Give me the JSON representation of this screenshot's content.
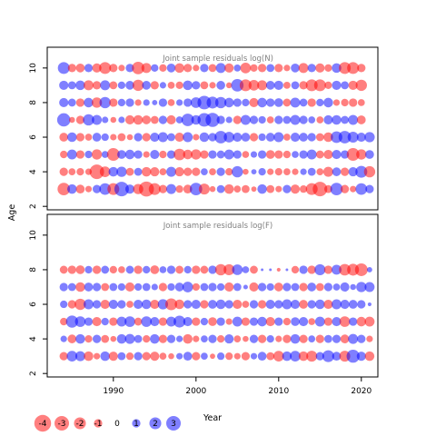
{
  "chart_data": [
    {
      "type": "scatter",
      "title": "Joint sample residuals log(N)",
      "ylabel": "Age",
      "xlim": [
        1982,
        2022
      ],
      "ylim": [
        1.8,
        11.2
      ],
      "yticks": [
        "2",
        "4",
        "6",
        "8",
        "10"
      ],
      "ages": [
        3,
        4,
        5,
        6,
        7,
        8,
        9,
        10
      ],
      "age_year_range": {
        "3": [
          1984,
          2021
        ],
        "4": [
          1984,
          2021
        ],
        "5": [
          1984,
          2021
        ],
        "6": [
          1984,
          2021
        ],
        "7": [
          1984,
          2020
        ],
        "8": [
          1984,
          2020
        ],
        "9": [
          1984,
          2020
        ],
        "10": [
          1984,
          2020
        ]
      },
      "residuals": {
        "3": [
          -2.2,
          1.3,
          -1.1,
          -0.6,
          1.0,
          1.9,
          -2.0,
          3.0,
          1.2,
          -1.5,
          -3.2,
          -2.0,
          -1.0,
          1.4,
          -0.8,
          -1.1,
          2.2,
          -1.7,
          -0.5,
          0.9,
          -1.3,
          -0.7,
          -0.9,
          -0.4,
          1.3,
          -0.9,
          -0.6,
          1.0,
          -1.2,
          -0.8,
          -2.0,
          -3.0,
          -0.9,
          2.2,
          -1.0,
          -0.6,
          1.9,
          1.0
        ],
        "4": [
          -1.0,
          -0.7,
          -0.8,
          -0.6,
          -3.0,
          -1.6,
          1.3,
          1.5,
          -0.9,
          0.9,
          -1.3,
          -1.2,
          -0.7,
          1.4,
          -1.2,
          -1.0,
          -1.0,
          0.7,
          -0.7,
          1.0,
          -0.8,
          1.8,
          -0.5,
          0.4,
          0.8,
          -0.6,
          -0.8,
          -0.7,
          -0.6,
          0.6,
          0.9,
          -0.7,
          -1.4,
          1.1,
          -1.0,
          1.2,
          2.0,
          -1.8
        ],
        "5": [
          -0.8,
          1.4,
          -1.0,
          0.8,
          -1.5,
          0.7,
          -2.3,
          1.1,
          1.3,
          1.0,
          -0.6,
          1.2,
          -0.8,
          1.0,
          -1.9,
          -1.3,
          -1.5,
          -1.0,
          1.0,
          0.9,
          1.4,
          1.0,
          -0.7,
          0.6,
          1.0,
          -1.1,
          -1.0,
          -0.8,
          0.7,
          1.0,
          1.4,
          -0.9,
          -1.2,
          1.2,
          1.0,
          -2.3,
          -1.5,
          1.1
        ],
        "6": [
          -1.1,
          1.3,
          -1.0,
          -0.7,
          1.1,
          0.8,
          -0.6,
          -0.9,
          -0.5,
          1.0,
          -1.0,
          1.2,
          1.4,
          0.9,
          -1.2,
          1.4,
          -0.6,
          1.3,
          1.0,
          2.2,
          1.6,
          1.2,
          1.1,
          -1.0,
          0.8,
          1.1,
          1.4,
          -0.7,
          1.2,
          1.1,
          1.0,
          -0.9,
          -1.3,
          1.9,
          2.2,
          1.7,
          1.2,
          1.5
        ],
        "7": [
          2.5,
          -0.5,
          -1.0,
          1.8,
          1.4,
          0.6,
          -0.5,
          0.6,
          -1.2,
          -1.3,
          -1.1,
          -0.9,
          1.0,
          -1.2,
          0.7,
          2.2,
          1.3,
          2.6,
          2.8,
          1.0,
          0.6,
          -1.0,
          1.4,
          1.0,
          0.8,
          -0.7,
          1.0,
          0.9,
          1.4,
          1.0,
          0.7,
          -0.7,
          1.2,
          1.3,
          0.9,
          1.4,
          -1.1
        ],
        "8": [
          1.2,
          0.9,
          -1.0,
          1.3,
          -1.5,
          1.8,
          -1.0,
          0.8,
          1.0,
          -0.6,
          0.6,
          0.4,
          1.0,
          -0.7,
          0.6,
          1.0,
          1.6,
          2.6,
          2.0,
          1.8,
          1.3,
          1.0,
          0.8,
          -1.2,
          1.3,
          1.0,
          1.1,
          -0.9,
          1.4,
          0.9,
          -1.0,
          0.8,
          1.3,
          -0.6,
          -0.8,
          -1.0,
          -0.7
        ],
        "9": [
          1.2,
          0.9,
          1.3,
          -1.4,
          -1.0,
          1.4,
          -0.9,
          0.8,
          1.1,
          -1.8,
          1.1,
          -1.0,
          0.6,
          -0.7,
          -0.8,
          1.3,
          1.0,
          -0.9,
          -0.6,
          1.1,
          -0.5,
          2.2,
          -2.0,
          -1.6,
          -1.4,
          1.1,
          1.2,
          -0.7,
          0.9,
          -1.0,
          -2.0,
          -2.0,
          -0.8,
          1.2,
          0.9,
          -1.2,
          -1.8
        ],
        "10": [
          2.0,
          -1.0,
          -1.1,
          1.0,
          -1.2,
          -2.0,
          -1.0,
          -0.6,
          1.0,
          -2.2,
          -1.4,
          0.8,
          -0.8,
          1.1,
          -1.3,
          -1.0,
          -0.6,
          1.0,
          -0.9,
          1.4,
          -1.2,
          0.7,
          -1.6,
          -0.8,
          -1.0,
          0.9,
          -1.0,
          -0.6,
          1.1,
          -1.4,
          1.0,
          -1.2,
          -0.8,
          1.3,
          -2.0,
          -2.0,
          -1.0
        ]
      }
    },
    {
      "type": "scatter",
      "title": "Joint sample residuals log(F)",
      "xlabel": "Year",
      "ylabel": "",
      "xlim": [
        1982,
        2022
      ],
      "ylim": [
        1.8,
        11.2
      ],
      "xticks": [
        "1990",
        "2000",
        "2010",
        "2020"
      ],
      "yticks": [
        "2",
        "4",
        "6",
        "8",
        "10"
      ],
      "ages": [
        3,
        4,
        5,
        6,
        7,
        8
      ],
      "age_year_range": {
        "3": [
          1984,
          2021
        ],
        "4": [
          1984,
          2021
        ],
        "5": [
          1984,
          2021
        ],
        "6": [
          1984,
          2021
        ],
        "7": [
          1984,
          2021
        ],
        "8": [
          1984,
          2021
        ]
      },
      "residuals": {
        "3": [
          -1.0,
          1.6,
          1.4,
          -1.3,
          -0.6,
          1.3,
          -1.2,
          0.9,
          -0.8,
          1.0,
          -1.0,
          -1.2,
          -0.7,
          -0.5,
          0.6,
          1.1,
          -1.0,
          0.7,
          -0.4,
          0.8,
          -0.8,
          -0.6,
          -1.0,
          0.6,
          1.1,
          -0.9,
          -1.6,
          1.3,
          1.6,
          -1.3,
          -1.7,
          1.0,
          2.0,
          1.1,
          -1.7,
          2.4,
          1.2,
          -1.3
        ],
        "4": [
          0.6,
          -1.1,
          1.3,
          -0.8,
          1.0,
          -0.9,
          -0.5,
          1.3,
          1.4,
          0.9,
          -0.8,
          1.3,
          -1.0,
          1.0,
          0.6,
          -1.3,
          -0.6,
          0.7,
          1.0,
          -0.8,
          1.2,
          -0.7,
          -0.5,
          1.0,
          -1.0,
          0.8,
          -0.6,
          -1.0,
          1.3,
          -1.0,
          0.7,
          -1.0,
          0.9,
          1.0,
          -1.1,
          1.4,
          1.0,
          -0.6
        ],
        "5": [
          -0.8,
          2.1,
          1.6,
          1.0,
          -1.2,
          0.8,
          -1.0,
          1.4,
          1.6,
          -0.9,
          1.6,
          1.2,
          -1.0,
          1.4,
          2.0,
          1.2,
          -1.0,
          0.8,
          -1.1,
          1.0,
          -0.6,
          1.4,
          -1.0,
          1.0,
          1.3,
          -1.2,
          1.0,
          -0.8,
          1.1,
          1.2,
          -0.7,
          1.4,
          -1.0,
          1.2,
          -1.6,
          1.0,
          -1.3,
          -1.4
        ],
        "6": [
          0.8,
          -1.0,
          -1.8,
          1.4,
          1.0,
          -1.2,
          1.2,
          1.0,
          -0.7,
          1.2,
          1.3,
          -1.2,
          1.5,
          -2.0,
          -1.3,
          1.0,
          1.2,
          -1.0,
          1.1,
          1.3,
          1.0,
          -1.2,
          -0.7,
          1.0,
          -1.0,
          1.2,
          1.0,
          1.4,
          1.2,
          -1.1,
          1.0,
          1.3,
          -1.2,
          1.4,
          1.2,
          1.1,
          1.0,
          0.2
        ],
        "7": [
          1.0,
          0.9,
          -1.3,
          1.1,
          1.0,
          -0.9,
          0.9,
          0.8,
          -1.2,
          0.8,
          0.9,
          0.6,
          -1.0,
          0.8,
          1.1,
          1.6,
          -0.8,
          0.9,
          1.0,
          0.8,
          -1.2,
          0.9,
          0.3,
          -1.2,
          1.0,
          0.8,
          -1.1,
          1.0,
          0.9,
          -1.0,
          1.1,
          -0.9,
          1.0,
          0.7,
          1.2,
          0.5,
          1.5,
          1.4
        ],
        "8": [
          -0.9,
          -1.0,
          -1.1,
          0.8,
          -1.0,
          0.9,
          -0.8,
          -0.7,
          0.9,
          -1.0,
          0.8,
          -1.1,
          0.7,
          1.0,
          -0.9,
          0.8,
          -1.0,
          -0.9,
          1.0,
          -1.8,
          -1.7,
          1.6,
          0.7,
          -0.9,
          0.1,
          0.1,
          -0.2,
          0.1,
          -0.8,
          1.0,
          -1.0,
          1.7,
          -1.0,
          1.4,
          -1.9,
          -2.0,
          -2.3,
          0.4
        ]
      }
    }
  ],
  "legend": {
    "entries": [
      {
        "label": "-4",
        "value": -4
      },
      {
        "label": "-3",
        "value": -3
      },
      {
        "label": "-2",
        "value": -2
      },
      {
        "label": "-1",
        "value": -1
      },
      {
        "label": "0",
        "value": 0
      },
      {
        "label": "1",
        "value": 1
      },
      {
        "label": "2",
        "value": 2
      },
      {
        "label": "3",
        "value": 3
      }
    ]
  },
  "colors": {
    "negative": "#ff0000",
    "positive": "#0000ff",
    "marker_opacity": 0.5,
    "title_text": "#808080"
  }
}
